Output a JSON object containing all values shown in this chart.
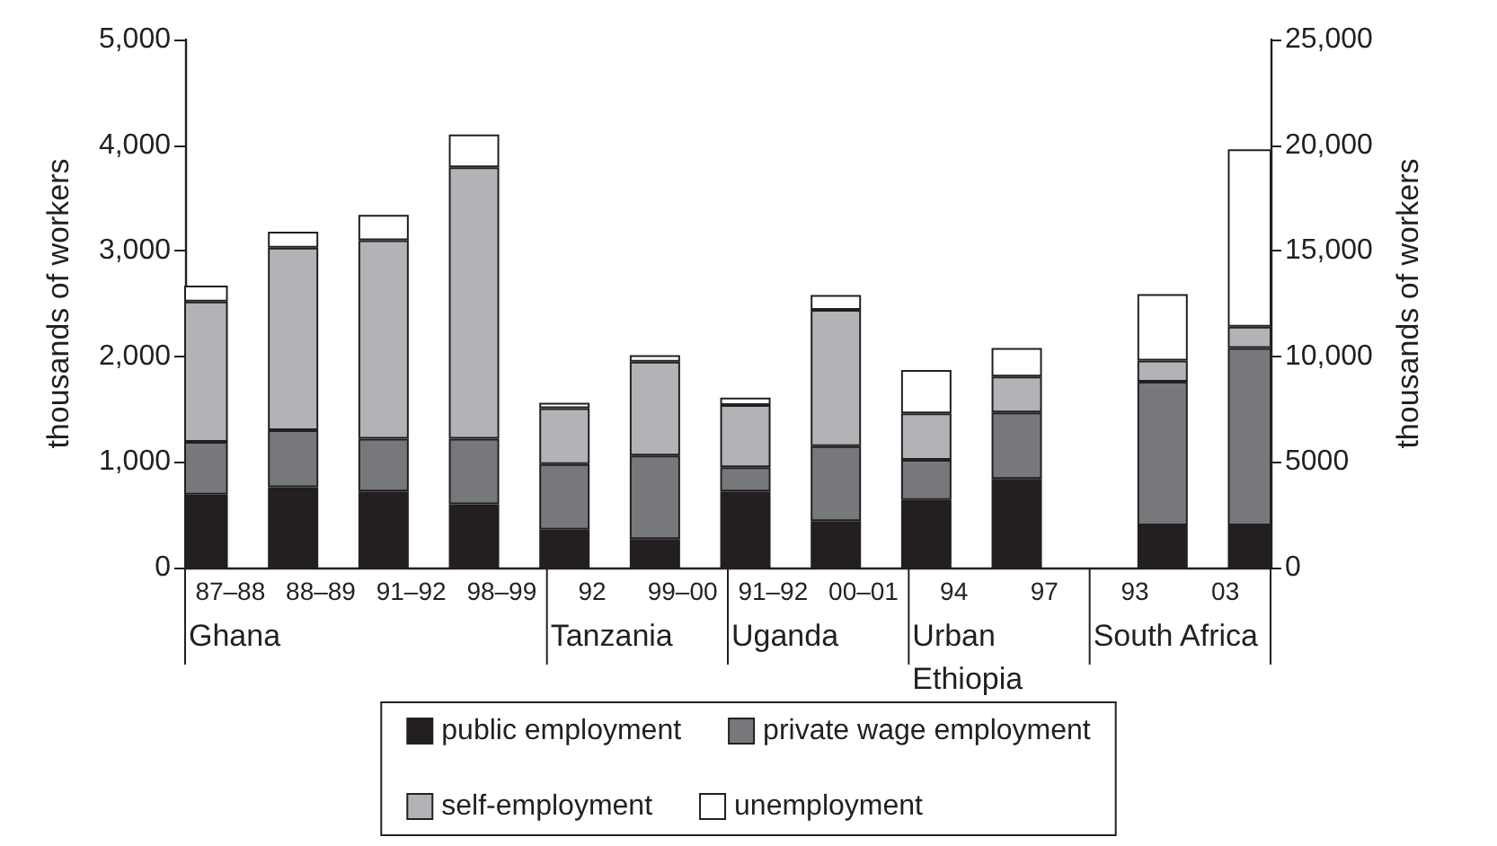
{
  "chart_data": {
    "type": "bar",
    "stacked": true,
    "categories": [
      "87–88",
      "88–89",
      "91–92",
      "98–99",
      "92",
      "99–00",
      "91–92",
      "00–01",
      "94",
      "97",
      "93",
      "03"
    ],
    "annotations": [
      "Ghana",
      "Tanzania",
      "Uganda",
      "Urban Ethiopia",
      "South Africa"
    ],
    "ylabel": "thousands of workers",
    "y2label": "thousands of workers",
    "ylim": [
      0,
      5000
    ],
    "yticks": [
      0,
      {
        "value": 1000,
        "label": "1,000"
      },
      {
        "value": 2000,
        "label": "2,000"
      },
      {
        "value": 3000,
        "label": "3,000"
      },
      {
        "value": 4000,
        "label": "4,000"
      },
      {
        "value": 5000,
        "label": "5,000"
      }
    ],
    "y2lim": [
      0,
      25000
    ],
    "y2ticks": [
      0,
      {
        "value": 5000,
        "label": "5000"
      },
      {
        "value": 10000,
        "label": "10,000"
      },
      {
        "value": 15000,
        "label": "15,000"
      },
      {
        "value": 20000,
        "label": "20,000"
      },
      {
        "value": 25000,
        "label": "25,000"
      }
    ],
    "grid": false,
    "legend": "bottom",
    "series": [
      {
        "name": "public employment",
        "color": "#231f20",
        "values": [
          690,
          760,
          720,
          600,
          360,
          270,
          720,
          440,
          640,
          840,
          null,
          null
        ]
      },
      {
        "name": "private wage employment",
        "color": "#77787b",
        "values": [
          500,
          540,
          500,
          620,
          620,
          790,
          230,
          710,
          380,
          630,
          null,
          null
        ]
      },
      {
        "name": "self-employment",
        "color": "#b1b3b6",
        "values": [
          1330,
          1730,
          1880,
          2570,
          530,
          890,
          590,
          1290,
          440,
          340,
          null,
          null
        ]
      },
      {
        "name": "unemployment",
        "color": "#ffffff",
        "values": [
          150,
          150,
          240,
          310,
          50,
          60,
          70,
          140,
          410,
          270,
          null,
          null
        ]
      },
      {
        "color": "#231f20",
        "axis": "y2",
        "values": [
          null,
          null,
          null,
          null,
          null,
          null,
          null,
          null,
          null,
          null,
          2000,
          2000
        ]
      },
      {
        "color": "#77787b",
        "axis": "y2",
        "values": [
          null,
          null,
          null,
          null,
          null,
          null,
          null,
          null,
          null,
          null,
          6800,
          8400
        ]
      },
      {
        "color": "#b1b3b6",
        "axis": "y2",
        "values": [
          null,
          null,
          null,
          null,
          null,
          null,
          null,
          null,
          null,
          null,
          1000,
          1000
        ]
      },
      {
        "color": "#ffffff",
        "axis": "y2",
        "values": [
          null,
          null,
          null,
          null,
          null,
          null,
          null,
          null,
          null,
          null,
          3150,
          8400
        ]
      }
    ]
  }
}
